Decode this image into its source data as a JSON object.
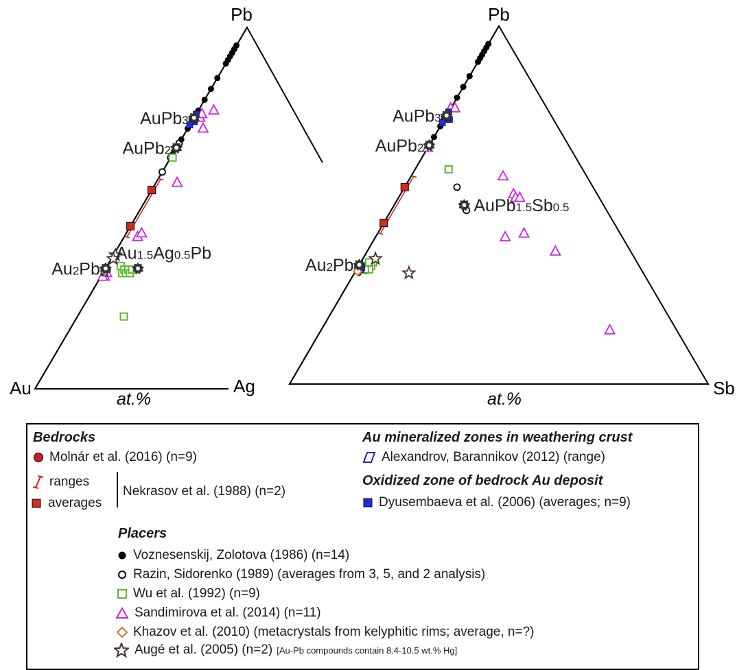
{
  "colors": {
    "molnar": "#c8201b",
    "nekrasov": "#c8201b",
    "nekrasov_fill": "#d42b1e",
    "alexandrov": "#2222cc",
    "dyusembaeva": "#1f2de0",
    "voznesenskij": "#000000",
    "razin": "#000000",
    "wu": "#5cb82d",
    "sandimirova": "#cc22dd",
    "khazov": "#c87a28",
    "auge": "#4a3030"
  },
  "chart_data": [
    {
      "type": "ternary-scatter",
      "vertices": {
        "top": "Pb",
        "left": "Au",
        "right": "Ag"
      },
      "axis_label": "at.%",
      "phases": [
        {
          "label": "AuPb₃",
          "base": "AuPb",
          "sub": "3",
          "Au": 25,
          "Pb": 75,
          "Ag": 0
        },
        {
          "label": "AuPb₂",
          "base": "AuPb",
          "sub": "2",
          "Au": 33.3,
          "Pb": 66.7,
          "Ag": 0
        },
        {
          "label": "Au₂Pb",
          "base": "Au",
          "sub": "2",
          "tail": "Pb",
          "Au": 66.7,
          "Pb": 33.3,
          "Ag": 0
        },
        {
          "label": "Au1.5Ag0.5Pb",
          "parts": [
            [
              "Au",
              ""
            ],
            [
              "1.5",
              "sub"
            ],
            [
              "Ag",
              ""
            ],
            [
              "0.5",
              "sub"
            ],
            [
              "Pb",
              ""
            ]
          ],
          "Au": 50,
          "Pb": 33.3,
          "Ag": 16.7
        }
      ],
      "series": [
        {
          "name": "voznesenskij",
          "marker": "filled-circle",
          "points": [
            [
              5,
              95
            ],
            [
              6,
              94
            ],
            [
              7,
              93
            ],
            [
              8,
              92
            ],
            [
              9,
              91
            ],
            [
              10,
              90
            ],
            [
              14,
              86
            ],
            [
              17,
              83
            ],
            [
              20,
              80
            ],
            [
              23,
              77
            ],
            [
              25,
              75
            ],
            [
              28,
              72
            ],
            [
              31,
              69
            ],
            [
              35,
              65
            ]
          ]
        },
        {
          "name": "razin",
          "marker": "open-circle",
          "points": [
            [
              32,
              68
            ],
            [
              36,
              64
            ],
            [
              40,
              60
            ]
          ]
        },
        {
          "name": "wu",
          "marker": "open-square",
          "points": [
            [
              59,
              34
            ],
            [
              58,
              32
            ],
            [
              57,
              33
            ],
            [
              56,
              32
            ],
            [
              55,
              33
            ],
            [
              54,
              32
            ],
            [
              53,
              33
            ],
            [
              56,
              20
            ],
            [
              35,
              64
            ]
          ]
        },
        {
          "name": "sandimirova",
          "marker": "open-triangle",
          "points": [
            [
              23,
              75
            ],
            [
              22,
              75
            ],
            [
              21,
              76
            ],
            [
              15,
              77
            ],
            [
              20,
              72
            ],
            [
              32,
              57
            ],
            [
              51,
              42
            ],
            [
              49,
              43
            ],
            [
              66,
              32
            ],
            [
              67,
              31
            ],
            [
              68,
              31
            ]
          ]
        },
        {
          "name": "molnar",
          "marker": "filled-circle",
          "points": [
            [
              66,
              33
            ],
            [
              66.5,
              32.5
            ],
            [
              67,
              32
            ],
            [
              67.5,
              31.5
            ],
            [
              68,
              31
            ],
            [
              66,
              32
            ],
            [
              67,
              33
            ],
            [
              65.5,
              33
            ],
            [
              66,
              31.5
            ]
          ]
        },
        {
          "name": "nekrasov-avg",
          "marker": "filled-square",
          "points": [
            [
              45,
              55
            ],
            [
              55,
              45
            ]
          ]
        },
        {
          "name": "nekrasov-range",
          "marker": "range-line",
          "points": [
            [
              42,
              58
            ],
            [
              58,
              42
            ]
          ]
        },
        {
          "name": "dyusembaeva",
          "marker": "filled-square",
          "points": [
            [
              25,
              75
            ],
            [
              26,
              74
            ],
            [
              24,
              76
            ],
            [
              26,
              75
            ],
            [
              25,
              74.5
            ],
            [
              27,
              73
            ],
            [
              66,
              33
            ],
            [
              67,
              32
            ],
            [
              67.5,
              32.5
            ]
          ]
        },
        {
          "name": "khazov",
          "marker": "open-diamond",
          "points": [
            [
              67,
              32.5
            ]
          ]
        },
        {
          "name": "auge",
          "marker": "star",
          "points": [
            [
              62,
              37
            ],
            [
              63,
              36
            ]
          ]
        }
      ]
    },
    {
      "type": "ternary-scatter",
      "vertices": {
        "top": "Pb",
        "left": "Au",
        "right": "Sb"
      },
      "axis_label": "at.%",
      "phases": [
        {
          "label": "AuPb₃",
          "base": "AuPb",
          "sub": "3",
          "Au": 25,
          "Pb": 75,
          "Sb": 0
        },
        {
          "label": "AuPb₂",
          "base": "AuPb",
          "sub": "2",
          "Au": 33.3,
          "Pb": 66.7,
          "Sb": 0
        },
        {
          "label": "Au₂Pb",
          "base": "Au",
          "sub": "2",
          "tail": "Pb",
          "Au": 66.7,
          "Pb": 33.3,
          "Sb": 0
        },
        {
          "label": "AuPb1.5Sb0.5",
          "parts": [
            [
              "AuPb",
              ""
            ],
            [
              "1.5",
              "sub"
            ],
            [
              "Sb",
              ""
            ],
            [
              "0.5",
              "sub"
            ]
          ],
          "Au": 33.3,
          "Pb": 50,
          "Sb": 16.7
        }
      ],
      "series": [
        {
          "name": "voznesenskij",
          "marker": "filled-circle",
          "points": [
            [
              5,
              95
            ],
            [
              6,
              94
            ],
            [
              7,
              93
            ],
            [
              8,
              92
            ],
            [
              9,
              91
            ],
            [
              10,
              90
            ],
            [
              14,
              86
            ],
            [
              17,
              83
            ],
            [
              20,
              80
            ],
            [
              23,
              77
            ],
            [
              25,
              75
            ],
            [
              28,
              72
            ],
            [
              31,
              69
            ],
            [
              34,
              66
            ]
          ]
        },
        {
          "name": "razin",
          "marker": "open-circle",
          "points": [
            [
              33,
              67
            ],
            [
              33.5,
              48.5
            ],
            [
              32.5,
              55
            ]
          ]
        },
        {
          "name": "wu",
          "marker": "open-square",
          "points": [
            [
              32,
              60
            ],
            [
              63,
              34
            ],
            [
              64,
              33
            ],
            [
              65,
              33
            ],
            [
              65,
              32
            ],
            [
              66,
              32
            ],
            [
              64,
              34
            ]
          ]
        },
        {
          "name": "sandimirova",
          "marker": "open-triangle",
          "points": [
            [
              23,
              77
            ],
            [
              22,
              77
            ],
            [
              34,
              66
            ],
            [
              20,
              53
            ],
            [
              20,
              52
            ],
            [
              19,
              52
            ],
            [
              20,
              58
            ],
            [
              23,
              42
            ],
            [
              28,
              41
            ],
            [
              18,
              37
            ],
            [
              16,
              15
            ]
          ]
        },
        {
          "name": "molnar",
          "marker": "filled-circle",
          "points": [
            [
              66,
              33
            ],
            [
              66.5,
              32.5
            ],
            [
              67,
              32
            ],
            [
              67.5,
              31.5
            ],
            [
              68,
              31
            ],
            [
              66,
              32
            ],
            [
              67,
              33
            ],
            [
              65.5,
              33
            ],
            [
              66,
              31.5
            ]
          ]
        },
        {
          "name": "nekrasov-avg",
          "marker": "filled-square",
          "points": [
            [
              45,
              55
            ],
            [
              55,
              45
            ]
          ]
        },
        {
          "name": "nekrasov-range",
          "marker": "range-line",
          "points": [
            [
              42,
              58
            ],
            [
              58,
              42
            ]
          ]
        },
        {
          "name": "dyusembaeva",
          "marker": "filled-square",
          "points": [
            [
              25,
              75
            ],
            [
              26,
              74
            ],
            [
              24,
              76
            ],
            [
              26,
              75
            ],
            [
              25,
              74.5
            ],
            [
              27,
              73
            ],
            [
              67,
              32
            ],
            [
              67.5,
              32.5
            ],
            [
              66.5,
              32.5
            ]
          ]
        },
        {
          "name": "khazov",
          "marker": "open-diamond",
          "points": [
            [
              68,
              31.5
            ]
          ]
        },
        {
          "name": "auge",
          "marker": "star",
          "points": [
            [
              62,
              35
            ],
            [
              56,
              31
            ]
          ]
        }
      ]
    }
  ],
  "legend": {
    "bedrocks": {
      "title": "Bedrocks",
      "molnar": "Molnár et al. (2016) (n=9)",
      "ranges": "ranges",
      "averages": "averages",
      "nekrasov": "Nekrasov et al. (1988) (n=2)"
    },
    "weathering": {
      "title": "Au mineralized zones in weathering crust",
      "alexandrov": "Alexandrov, Barannikov (2012) (range)"
    },
    "oxidized": {
      "title": "Oxidized zone of bedrock Au deposit",
      "dyusembaeva": "Dyusembaeva et al. (2006) (averages; n=9)"
    },
    "placers": {
      "title": "Placers",
      "voznesenskij": "Voznesenskij, Zolotova (1986) (n=14)",
      "razin": "Razin, Sidorenko (1989) (averages from 3, 5, and 2 analysis)",
      "wu": "Wu et al. (1992) (n=9)",
      "sandimirova": "Sandimirova et al. (2014) (n=11)",
      "khazov": "Khazov et al. (2010) (metacrystals from kelyphitic rims; average, n=?)",
      "auge": "Augé et al. (2005) (n=2)",
      "auge_note": "[Au-Pb compounds contain 8.4-10.5 wt.% Hg]"
    }
  }
}
